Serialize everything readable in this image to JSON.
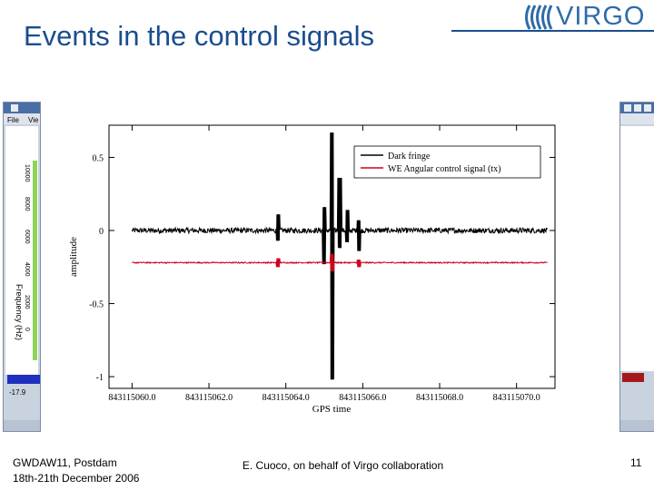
{
  "slide": {
    "title": "Events in the control signals",
    "logo_text": "VIRGO",
    "footer_left_line1": "GWDAW11,  Postdam",
    "footer_left_line2": "18th-21th December 2006",
    "footer_center": "E. Cuoco, on behalf of Virgo collaboration",
    "page_number": "11"
  },
  "background_windows": {
    "left": {
      "menu_file": "File",
      "menu_view": "Vie",
      "ylabel": "Frequency (Hz)",
      "yticks": [
        "10000",
        "8000",
        "6000",
        "4000",
        "2000",
        "0"
      ],
      "colorbar_value": "-17.9"
    },
    "right": {}
  },
  "colors": {
    "title": "#1a4d8f",
    "dark_fringe": "#000000",
    "we_angular": "#d0021b"
  },
  "chart_data": {
    "type": "line",
    "title": "",
    "xlabel": "GPS time",
    "ylabel": "amplitude",
    "xlim": [
      843115059.4,
      843115071.0
    ],
    "ylim": [
      -1.08,
      0.72
    ],
    "xticks": [
      843115060.0,
      843115062.0,
      843115064.0,
      843115066.0,
      843115068.0,
      843115070.0
    ],
    "xtick_labels": [
      "843115060.0",
      "843115062.0",
      "843115064.0",
      "843115066.0",
      "843115068.0",
      "843115070.0"
    ],
    "yticks": [
      0.5,
      0,
      -0.5,
      -1
    ],
    "ytick_labels": [
      "0.5",
      "0",
      "-0.5",
      "-1"
    ],
    "grid": false,
    "legend_position": "top-right",
    "series": [
      {
        "name": "Dark fringe",
        "color": "#000000",
        "baseline": 0.0,
        "noise_amplitude": 0.018,
        "events": [
          {
            "x": 843115063.8,
            "min": -0.07,
            "max": 0.11
          },
          {
            "x": 843115065.0,
            "min": -0.23,
            "max": 0.16
          },
          {
            "x": 843115065.2,
            "min": -1.02,
            "max": 0.67
          },
          {
            "x": 843115065.4,
            "min": -0.12,
            "max": 0.36
          },
          {
            "x": 843115065.6,
            "min": -0.08,
            "max": 0.14
          },
          {
            "x": 843115065.9,
            "min": -0.14,
            "max": 0.07
          }
        ]
      },
      {
        "name": "WE Angular control signal (tx)",
        "color": "#d0021b",
        "baseline": -0.22,
        "noise_amplitude": 0.004,
        "events": [
          {
            "x": 843115063.8,
            "min": -0.25,
            "max": -0.19
          },
          {
            "x": 843115065.2,
            "min": -0.28,
            "max": -0.16
          },
          {
            "x": 843115065.9,
            "min": -0.25,
            "max": -0.2
          }
        ]
      }
    ]
  }
}
